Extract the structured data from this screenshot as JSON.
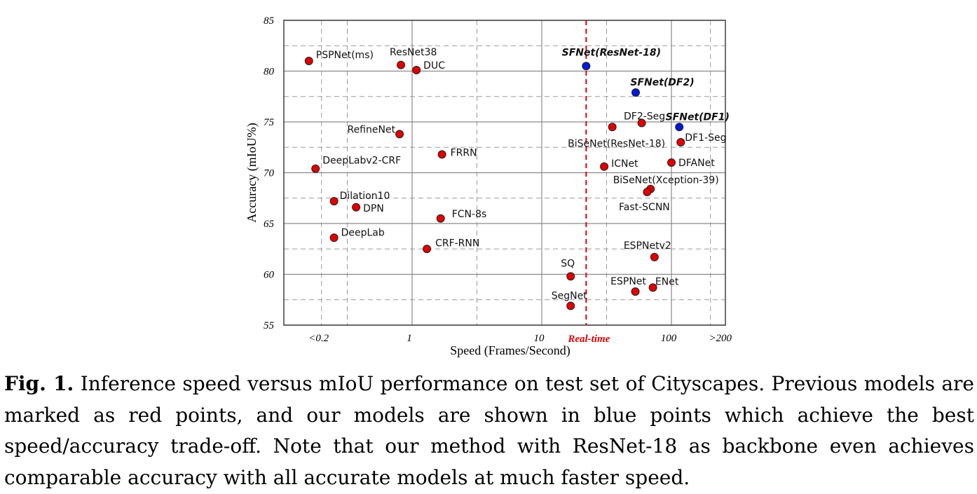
{
  "figure": {
    "caption_label": "Fig. 1.",
    "caption_text": "Inference speed versus mIoU performance on test set of Cityscapes. Previous models are marked as red points, and our models are shown in blue points which achieve the best speed/accuracy trade-off. Note that our method with ResNet-18 as backbone even achieves comparable accuracy with all accurate models at much faster speed."
  },
  "chart_data": {
    "type": "scatter",
    "xlabel": "Speed (Frames/Second)",
    "ylabel": "Accuracy (mIoU%)",
    "x_scale": "log",
    "xlim": [
      0.15,
      250
    ],
    "ylim": [
      55,
      85
    ],
    "x_ticks": [
      {
        "value": 0.2,
        "label": "<0.2"
      },
      {
        "value": 1,
        "label": "1"
      },
      {
        "value": 10,
        "label": "10"
      },
      {
        "value": 100,
        "label": "100"
      },
      {
        "value": 200,
        "label": ">200"
      }
    ],
    "y_ticks": [
      55,
      60,
      65,
      70,
      75,
      80,
      85
    ],
    "grid": true,
    "reference_line": {
      "x": 22,
      "label": "Real-time",
      "color": "#e00000",
      "style": "dashed"
    },
    "colors": {
      "previous": "#e00000",
      "ours": "#0018d8"
    },
    "series": [
      {
        "group": "previous",
        "points": [
          {
            "label": "PSPNet(ms)",
            "x": 0.16,
            "y": 81.0
          },
          {
            "label": "ResNet38",
            "x": 0.82,
            "y": 80.6
          },
          {
            "label": "DUC",
            "x": 1.08,
            "y": 80.1
          },
          {
            "label": "RefineNet",
            "x": 0.8,
            "y": 73.8
          },
          {
            "label": "FRRN",
            "x": 1.7,
            "y": 71.8
          },
          {
            "label": "DeepLabv2-CRF",
            "x": 0.18,
            "y": 70.4
          },
          {
            "label": "Dilation10",
            "x": 0.25,
            "y": 67.2
          },
          {
            "label": "DPN",
            "x": 0.37,
            "y": 66.6
          },
          {
            "label": "FCN-8s",
            "x": 1.66,
            "y": 65.5
          },
          {
            "label": "DeepLab",
            "x": 0.25,
            "y": 63.6
          },
          {
            "label": "CRF-RNN",
            "x": 1.3,
            "y": 62.5
          },
          {
            "label": "SQ",
            "x": 16.7,
            "y": 59.8
          },
          {
            "label": "SegNet",
            "x": 16.7,
            "y": 56.9
          },
          {
            "label": "ICNet",
            "x": 30.3,
            "y": 70.6
          },
          {
            "label": "BiSeNet(ResNet-18)",
            "x": 35,
            "y": 74.5
          },
          {
            "label": "DF2-Seg",
            "x": 59,
            "y": 74.9
          },
          {
            "label": "DF1-Seg",
            "x": 118,
            "y": 73.0
          },
          {
            "label": "DFANet",
            "x": 100,
            "y": 71.0
          },
          {
            "label": "BiSeNet(Xception-39)",
            "x": 69,
            "y": 68.4
          },
          {
            "label": "Fast-SCNN",
            "x": 65,
            "y": 68.1
          },
          {
            "label": "ESPNetv2",
            "x": 74,
            "y": 61.7
          },
          {
            "label": "ESPNet",
            "x": 52.7,
            "y": 58.3
          },
          {
            "label": "ENet",
            "x": 72,
            "y": 58.7
          }
        ]
      },
      {
        "group": "ours",
        "points": [
          {
            "label": "SFNet(ResNet-18)",
            "x": 22,
            "y": 80.5
          },
          {
            "label": "SFNet(DF2)",
            "x": 53,
            "y": 77.9
          },
          {
            "label": "SFNet(DF1)",
            "x": 115,
            "y": 74.5
          }
        ]
      }
    ]
  }
}
